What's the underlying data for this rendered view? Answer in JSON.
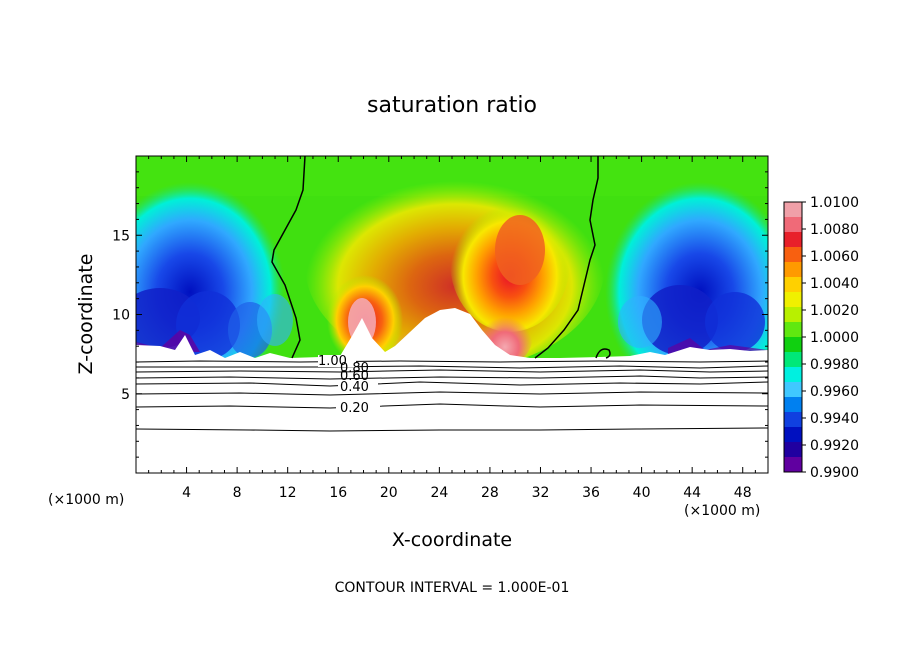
{
  "chart_data": {
    "type": "heatmap",
    "title": "saturation ratio",
    "xlabel": "X-coordinate",
    "ylabel": "Z-coordinate",
    "x_unit_left": "(×1000 m)",
    "x_unit_right": "(×1000 m)",
    "xlim": [
      0,
      50
    ],
    "ylim": [
      0,
      20
    ],
    "xticks": [
      4,
      8,
      12,
      16,
      20,
      24,
      28,
      32,
      36,
      40,
      44,
      48
    ],
    "yticks": [
      5,
      10,
      15
    ],
    "colorbar": {
      "min": 0.99,
      "max": 1.01,
      "labels": [
        "1.0100",
        "1.0080",
        "1.0060",
        "1.0040",
        "1.0020",
        "1.0000",
        "0.9980",
        "0.9960",
        "0.9940",
        "0.9920",
        "0.9900"
      ],
      "colors": [
        "#f0a0a8",
        "#f06a78",
        "#e8202a",
        "#f86010",
        "#ff9a00",
        "#ffd000",
        "#f0f000",
        "#b8f000",
        "#60e810",
        "#10d010",
        "#00e878",
        "#00f0e0",
        "#40c8ff",
        "#0080f0",
        "#1040e0",
        "#0010c0",
        "#2000a0",
        "#6000a0"
      ]
    },
    "field_features": [
      {
        "kind": "supersaturated_plume",
        "peak_x": 18,
        "peak_z": 10.8
      },
      {
        "kind": "supersaturated_plume",
        "peak_x": 25.5,
        "peak_z": 14.5
      },
      {
        "kind": "subsaturated_region",
        "x": 6,
        "z": 10
      },
      {
        "kind": "subsaturated_region",
        "x": 45,
        "z": 10
      }
    ],
    "contour_labels": [
      "1.00",
      "0.80",
      "0.60",
      "0.40",
      "0.20"
    ],
    "footer": "CONTOUR INTERVAL = 1.000E-01"
  }
}
